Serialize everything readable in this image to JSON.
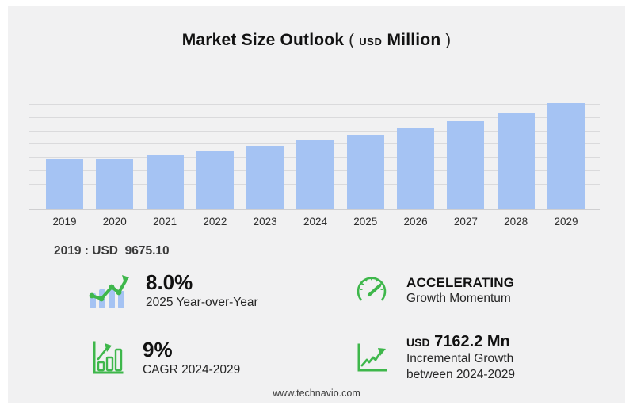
{
  "title": {
    "main": "Market Size Outlook",
    "paren_open": "(",
    "unit_currency": "USD",
    "unit": "Million",
    "paren_close": ")"
  },
  "chart_data": {
    "type": "bar",
    "title": "Market Size Outlook (USD Million)",
    "categories": [
      "2019",
      "2020",
      "2021",
      "2022",
      "2023",
      "2024",
      "2025",
      "2026",
      "2027",
      "2028",
      "2029"
    ],
    "values": [
      9675.1,
      9760,
      10480,
      11330,
      12260,
      13297.3,
      14361.1,
      15520,
      16890,
      18560,
      20459.5
    ],
    "xlabel": "",
    "ylabel": "",
    "ylim": [
      0,
      20460
    ],
    "gridline_count": 9,
    "grid": true,
    "legend": "none",
    "bar_color": "#a5c3f3"
  },
  "annotation_2019": {
    "label": "2019 : USD  9675.10"
  },
  "stats": [
    {
      "icon": "bar-chart-trend-icon",
      "value": "8.0%",
      "label": "2025 Year-over-Year"
    },
    {
      "icon": "speedometer-icon",
      "value": "ACCELERATING",
      "label": "Growth Momentum"
    },
    {
      "icon": "growth-bars-icon",
      "value": "9%",
      "label": "CAGR 2024-2029"
    },
    {
      "icon": "line-growth-icon",
      "value_currency": "USD",
      "value": "7162.2 Mn",
      "label_line1": "Incremental Growth",
      "label_line2": "between 2024-2029"
    }
  ],
  "footer": {
    "url": "www.technavio.com"
  },
  "colors": {
    "card_bg": "#f1f1f2",
    "bar": "#a5c3f3",
    "accent_green": "#3eb74b",
    "grid_line": "#dadadc",
    "text_dark": "#121212"
  }
}
